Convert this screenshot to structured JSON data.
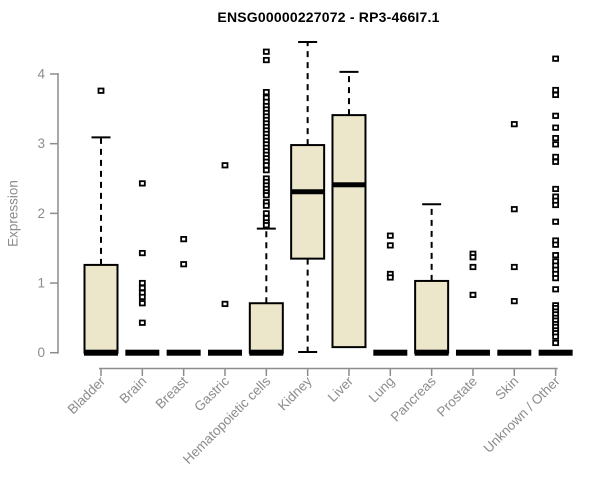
{
  "chart_data": {
    "type": "boxplot",
    "title": "ENSG00000227072 - RP3-466I7.1",
    "ylabel": "Expression",
    "xlabel": "",
    "ylim": [
      0,
      4.5
    ],
    "yticks": [
      0,
      1,
      2,
      3,
      4
    ],
    "grid": false,
    "legend": "none",
    "categories": [
      "Bladder",
      "Brain",
      "Breast",
      "Gastric",
      "Hematopoietic cells",
      "Kidney",
      "Liver",
      "Lung",
      "Pancreas",
      "Prostate",
      "Skin",
      "Unknown / Other"
    ],
    "series": [
      {
        "category": "Bladder",
        "q1": 0,
        "median": 0,
        "q3": 1.26,
        "whisker_low": 0,
        "whisker_high": 3.09,
        "outliers": [
          3.76
        ]
      },
      {
        "category": "Brain",
        "q1": 0,
        "median": 0,
        "q3": 0,
        "whisker_low": 0,
        "whisker_high": 0,
        "outliers": [
          2.43,
          1.43,
          1.0,
          0.93,
          0.86,
          0.8,
          0.71,
          0.43
        ]
      },
      {
        "category": "Breast",
        "q1": 0,
        "median": 0,
        "q3": 0,
        "whisker_low": 0,
        "whisker_high": 0,
        "outliers": [
          1.63,
          1.27
        ]
      },
      {
        "category": "Gastric",
        "q1": 0,
        "median": 0,
        "q3": 0,
        "whisker_low": 0,
        "whisker_high": 0,
        "outliers": [
          2.69,
          0.7
        ]
      },
      {
        "category": "Hematopoietic cells",
        "q1": 0,
        "median": 0,
        "q3": 0.71,
        "whisker_low": 0,
        "whisker_high": 1.78,
        "outliers": [
          4.32,
          4.2,
          3.74,
          3.66,
          3.6,
          3.54,
          3.49,
          3.44,
          3.39,
          3.34,
          3.29,
          3.24,
          3.19,
          3.14,
          3.09,
          3.04,
          2.99,
          2.94,
          2.89,
          2.84,
          2.79,
          2.74,
          2.69,
          2.62,
          2.5,
          2.45,
          2.4,
          2.35,
          2.3,
          2.26,
          2.16,
          2.11,
          2.0,
          1.93,
          1.87,
          1.83
        ]
      },
      {
        "category": "Kidney",
        "q1": 1.35,
        "median": 2.31,
        "q3": 2.98,
        "whisker_low": 0.01,
        "whisker_high": 4.46,
        "outliers": []
      },
      {
        "category": "Liver",
        "q1": 0.08,
        "median": 2.41,
        "q3": 3.41,
        "whisker_low": 0.08,
        "whisker_high": 4.03,
        "outliers": []
      },
      {
        "category": "Lung",
        "q1": 0,
        "median": 0,
        "q3": 0,
        "whisker_low": 0,
        "whisker_high": 0,
        "outliers": [
          1.68,
          1.54,
          1.13,
          1.08
        ]
      },
      {
        "category": "Pancreas",
        "q1": 0,
        "median": 0,
        "q3": 1.03,
        "whisker_low": 0,
        "whisker_high": 2.13,
        "outliers": []
      },
      {
        "category": "Prostate",
        "q1": 0,
        "median": 0,
        "q3": 0,
        "whisker_low": 0,
        "whisker_high": 0,
        "outliers": [
          1.42,
          1.37,
          1.23,
          0.83
        ]
      },
      {
        "category": "Skin",
        "q1": 0,
        "median": 0,
        "q3": 0,
        "whisker_low": 0,
        "whisker_high": 0,
        "outliers": [
          3.28,
          2.06,
          1.23,
          0.74
        ]
      },
      {
        "category": "Unknown / Other",
        "q1": 0,
        "median": 0,
        "q3": 0,
        "whisker_low": 0,
        "whisker_high": 0,
        "outliers": [
          4.22,
          3.77,
          3.7,
          3.4,
          3.23,
          3.08,
          2.99,
          2.81,
          2.74,
          2.35,
          2.24,
          2.18,
          2.12,
          1.88,
          1.61,
          1.55,
          1.4,
          1.31,
          1.25,
          1.19,
          1.13,
          1.07,
          0.91,
          0.68,
          0.64,
          0.59,
          0.55,
          0.5,
          0.46,
          0.41,
          0.37,
          0.32,
          0.28,
          0.23,
          0.14
        ]
      }
    ],
    "colors": {
      "box_fill": "#ECE6CB",
      "box_stroke": "#000000",
      "median": "#000000",
      "whisker": "#000000",
      "outlier_stroke": "#000000",
      "outlier_fill": "#FFFFFF",
      "axis": "#8C8C8C",
      "tick_label": "#8C8C8C",
      "title": "#000000",
      "background": "#FFFFFF"
    }
  }
}
